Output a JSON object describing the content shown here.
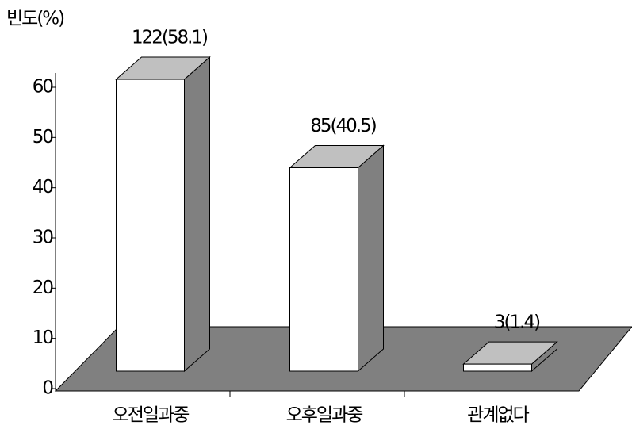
{
  "chart_data": {
    "type": "bar3d",
    "y_label": "빈도(%)",
    "categories": [
      "오전일과중",
      "오후일과중",
      "관계없다"
    ],
    "values": [
      58.1,
      40.5,
      1.4
    ],
    "value_labels": [
      "122(58.1)",
      "85(40.5)",
      "3(1.4)"
    ],
    "ylim": [
      0,
      60
    ],
    "yticks": [
      0,
      10,
      20,
      30,
      40,
      50,
      60
    ],
    "colors": {
      "front": "#ffffff",
      "side": "#808080",
      "top": "#c0c0c0",
      "floor": "#808080"
    }
  }
}
